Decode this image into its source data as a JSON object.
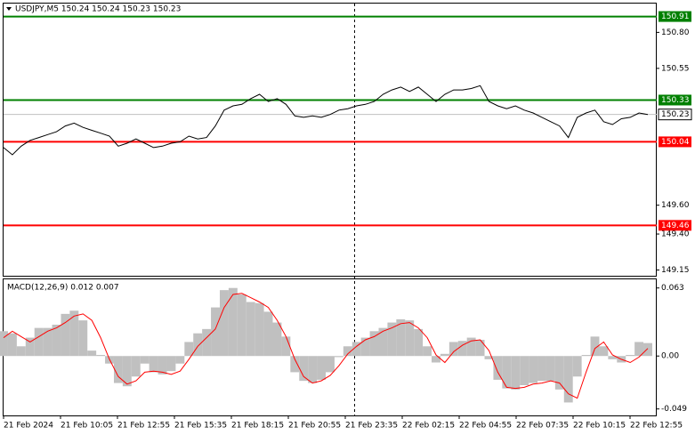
{
  "chart_data": [
    {
      "type": "line",
      "title": "USDJPY,M5  150.24 150.24 150.23 150.23",
      "series": [
        {
          "color": "#000000",
          "values": [
            150.0,
            149.95,
            150.01,
            150.05,
            150.07,
            150.09,
            150.11,
            150.15,
            150.17,
            150.14,
            150.12,
            150.1,
            150.08,
            150.01,
            150.03,
            150.06,
            150.03,
            150.0,
            150.01,
            150.03,
            150.04,
            150.08,
            150.06,
            150.07,
            150.15,
            150.26,
            150.29,
            150.3,
            150.34,
            150.37,
            150.32,
            150.34,
            150.3,
            150.22,
            150.21,
            150.22,
            150.21,
            150.23,
            150.26,
            150.27,
            150.29,
            150.3,
            150.32,
            150.37,
            150.4,
            150.42,
            150.39,
            150.42,
            150.37,
            150.32,
            150.37,
            150.4,
            150.4,
            150.41,
            150.43,
            150.32,
            150.29,
            150.27,
            150.29,
            150.26,
            150.24,
            150.21,
            150.18,
            150.15,
            150.07,
            150.21,
            150.24,
            150.26,
            150.18,
            150.16,
            150.2,
            150.21,
            150.24,
            150.23
          ]
        }
      ],
      "levels": [
        {
          "value": 150.91,
          "color": "#008000"
        },
        {
          "value": 150.33,
          "color": "#008000"
        },
        {
          "value": 150.04,
          "color": "#ff0000"
        },
        {
          "value": 149.46,
          "color": "#ff0000"
        }
      ],
      "ylim": [
        149.11,
        151.0
      ],
      "yticks": [
        {
          "value": 150.8,
          "label": "150.80"
        },
        150.55,
        {
          "value": 149.6,
          "label": "149.60"
        },
        {
          "value": 149.4,
          "label": "149.40"
        },
        149.15
      ],
      "xtick_labels": [
        "21 Feb 2024",
        "21 Feb 10:05",
        "21 Feb 12:55",
        "21 Feb 15:35",
        "21 Feb 18:15",
        "21 Feb 20:55",
        "21 Feb 23:35",
        "22 Feb 02:15",
        "22 Feb 04:55",
        "22 Feb 07:35",
        "22 Feb 10:15",
        "22 Feb 12:55"
      ]
    },
    {
      "type": "macd",
      "title": "MACD(12,26,9) 0.012 0.007",
      "series": [
        {
          "type": "histogram",
          "color": "#c0c0c0",
          "values": [
            0.023,
            0.021,
            0.009,
            0.017,
            0.026,
            0.026,
            0.029,
            0.039,
            0.042,
            0.033,
            0.005,
            0.001,
            -0.007,
            -0.025,
            -0.028,
            -0.019,
            -0.007,
            -0.015,
            -0.017,
            -0.014,
            -0.007,
            0.013,
            0.021,
            0.025,
            0.045,
            0.061,
            0.063,
            0.057,
            0.05,
            0.049,
            0.041,
            0.031,
            0.018,
            -0.015,
            -0.023,
            -0.025,
            -0.022,
            -0.015,
            -0.001,
            0.009,
            0.013,
            0.017,
            0.023,
            0.026,
            0.031,
            0.034,
            0.033,
            0.025,
            0.009,
            -0.006,
            0.002,
            0.013,
            0.014,
            0.017,
            0.015,
            -0.003,
            -0.022,
            -0.03,
            -0.031,
            -0.027,
            -0.025,
            -0.023,
            -0.023,
            -0.031,
            -0.043,
            -0.019,
            0.001,
            0.018,
            0.009,
            -0.003,
            -0.006,
            0.001,
            0.013,
            0.012
          ]
        },
        {
          "type": "line",
          "color": "#ff0000",
          "values": [
            0.017,
            0.023,
            0.018,
            0.013,
            0.018,
            0.023,
            0.026,
            0.031,
            0.037,
            0.039,
            0.033,
            0.017,
            -0.003,
            -0.019,
            -0.026,
            -0.023,
            -0.015,
            -0.014,
            -0.015,
            -0.017,
            -0.014,
            -0.003,
            0.009,
            0.017,
            0.025,
            0.045,
            0.057,
            0.058,
            0.054,
            0.05,
            0.045,
            0.033,
            0.018,
            -0.003,
            -0.019,
            -0.025,
            -0.023,
            -0.018,
            -0.009,
            0.002,
            0.009,
            0.015,
            0.018,
            0.023,
            0.026,
            0.03,
            0.031,
            0.026,
            0.017,
            0.001,
            -0.006,
            0.004,
            0.01,
            0.014,
            0.015,
            0.005,
            -0.015,
            -0.029,
            -0.03,
            -0.029,
            -0.026,
            -0.025,
            -0.023,
            -0.025,
            -0.035,
            -0.039,
            -0.015,
            0.007,
            0.013,
            0.001,
            -0.003,
            -0.006,
            -0.001,
            0.007
          ]
        }
      ],
      "ylim": [
        -0.055,
        0.071
      ],
      "yticks": [
        0.063,
        {
          "value": 0,
          "label": "0.00"
        },
        -0.049
      ]
    }
  ]
}
